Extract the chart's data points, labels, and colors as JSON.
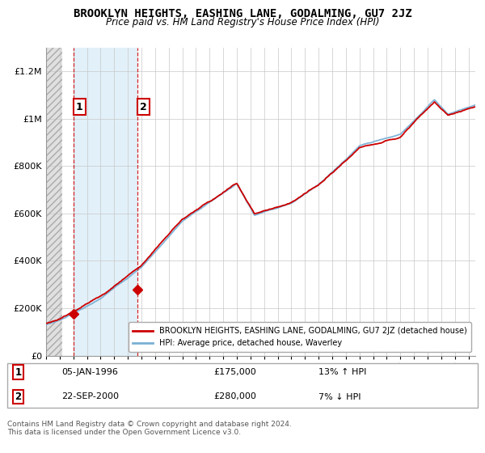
{
  "title": "BROOKLYN HEIGHTS, EASHING LANE, GODALMING, GU7 2JZ",
  "subtitle": "Price paid vs. HM Land Registry's House Price Index (HPI)",
  "legend_label1": "BROOKLYN HEIGHTS, EASHING LANE, GODALMING, GU7 2JZ (detached house)",
  "legend_label2": "HPI: Average price, detached house, Waverley",
  "footnote": "Contains HM Land Registry data © Crown copyright and database right 2024.\nThis data is licensed under the Open Government Licence v3.0.",
  "sale1_label": "1",
  "sale1_date": "05-JAN-1996",
  "sale1_price": "£175,000",
  "sale1_hpi": "13% ↑ HPI",
  "sale1_year": 1996.03,
  "sale1_value": 175000,
  "sale2_label": "2",
  "sale2_date": "22-SEP-2000",
  "sale2_price": "£280,000",
  "sale2_hpi": "7% ↓ HPI",
  "sale2_year": 2000.72,
  "sale2_value": 280000,
  "ylim": [
    0,
    1300000
  ],
  "xlim_start": 1994.0,
  "xlim_end": 2025.5,
  "hatch_end": 1995.2,
  "color_red": "#cc0000",
  "color_blue": "#7ab0d4",
  "color_hatch_bg": "#e8e8e8",
  "color_blue_highlight": "#ddeef8",
  "bg_white": "#ffffff"
}
